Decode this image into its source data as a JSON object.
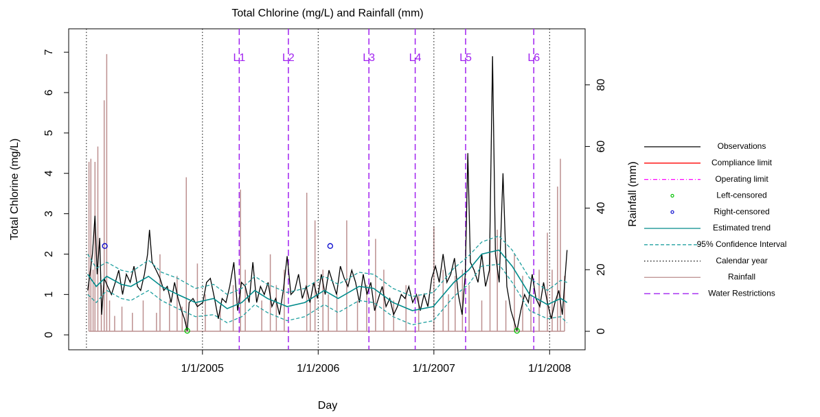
{
  "chart_data": {
    "type": "line",
    "title": "Total Chlorine (mg/L) and Rainfall (mm)",
    "xlabel": "Day",
    "ylabel": "Total Chlorine (mg/L)",
    "y2label": "Rainfall (mm)",
    "xlim": [
      "2003-11-06",
      "2008-04-22"
    ],
    "ylim": [
      -0.37,
      7.58
    ],
    "y2lim": [
      -6,
      98.2
    ],
    "xticks": [
      {
        "value": "2005-01-01",
        "label": "1/1/2005"
      },
      {
        "value": "2006-01-01",
        "label": "1/1/2006"
      },
      {
        "value": "2007-01-01",
        "label": "1/1/2007"
      },
      {
        "value": "2008-01-01",
        "label": "1/1/2008"
      }
    ],
    "yticks": [
      0,
      1,
      2,
      3,
      4,
      5,
      6,
      7
    ],
    "y2ticks": [
      0,
      20,
      40,
      60,
      80
    ],
    "observations": {
      "name": "Observations",
      "color": "#000000",
      "x": [
        "2004-01-05",
        "2004-01-12",
        "2004-01-20",
        "2004-01-28",
        "2004-02-04",
        "2004-02-12",
        "2004-02-18",
        "2004-02-26",
        "2004-03-08",
        "2004-03-20",
        "2004-04-01",
        "2004-04-12",
        "2004-04-24",
        "2004-05-06",
        "2004-05-18",
        "2004-05-30",
        "2004-06-10",
        "2004-06-20",
        "2004-07-02",
        "2004-07-12",
        "2004-07-18",
        "2004-07-26",
        "2004-08-08",
        "2004-08-20",
        "2004-09-01",
        "2004-09-12",
        "2004-09-24",
        "2004-10-05",
        "2004-10-16",
        "2004-10-27",
        "2004-11-05",
        "2004-11-14",
        "2004-11-20",
        "2004-12-02",
        "2004-12-16",
        "2005-01-02",
        "2005-01-14",
        "2005-01-26",
        "2005-02-08",
        "2005-02-20",
        "2005-03-04",
        "2005-03-16",
        "2005-03-28",
        "2005-04-10",
        "2005-04-22",
        "2005-05-04",
        "2005-05-16",
        "2005-05-28",
        "2005-06-09",
        "2005-06-21",
        "2005-07-03",
        "2005-07-15",
        "2005-07-27",
        "2005-08-08",
        "2005-08-20",
        "2005-09-01",
        "2005-09-13",
        "2005-09-25",
        "2005-10-07",
        "2005-10-19",
        "2005-10-31",
        "2005-11-12",
        "2005-11-24",
        "2005-12-06",
        "2005-12-18",
        "2005-12-30",
        "2006-01-11",
        "2006-01-23",
        "2006-02-04",
        "2006-02-16",
        "2006-02-28",
        "2006-03-12",
        "2006-03-24",
        "2006-04-05",
        "2006-04-17",
        "2006-04-29",
        "2006-05-11",
        "2006-05-23",
        "2006-06-04",
        "2006-06-16",
        "2006-06-28",
        "2006-07-10",
        "2006-07-22",
        "2006-08-03",
        "2006-08-15",
        "2006-08-27",
        "2006-09-08",
        "2006-09-20",
        "2006-10-02",
        "2006-10-14",
        "2006-10-26",
        "2006-11-07",
        "2006-11-19",
        "2006-12-01",
        "2006-12-13",
        "2006-12-25",
        "2007-01-06",
        "2007-01-18",
        "2007-01-30",
        "2007-02-11",
        "2007-02-23",
        "2007-03-07",
        "2007-03-19",
        "2007-03-31",
        "2007-04-10",
        "2007-04-18",
        "2007-04-26",
        "2007-05-08",
        "2007-05-20",
        "2007-06-01",
        "2007-06-13",
        "2007-06-25",
        "2007-07-05",
        "2007-07-14",
        "2007-07-26",
        "2007-08-07",
        "2007-08-19",
        "2007-09-01",
        "2007-09-20",
        "2007-10-02",
        "2007-10-14",
        "2007-10-26",
        "2007-11-07",
        "2007-11-19",
        "2007-12-01",
        "2007-12-13",
        "2007-12-25",
        "2008-01-06",
        "2008-01-18",
        "2008-01-30",
        "2008-02-10",
        "2008-02-25"
      ],
      "values": [
        1.1,
        1.5,
        2.0,
        2.95,
        1.5,
        2.4,
        0.5,
        1.4,
        1.2,
        1.0,
        1.3,
        1.6,
        1.0,
        1.5,
        1.3,
        1.7,
        1.2,
        1.1,
        1.5,
        2.0,
        2.6,
        1.8,
        1.6,
        1.4,
        1.1,
        1.2,
        0.8,
        1.3,
        0.9,
        0.6,
        0.4,
        0.1,
        0.8,
        0.9,
        0.7,
        0.8,
        1.3,
        1.4,
        0.9,
        0.4,
        0.9,
        0.8,
        1.2,
        1.8,
        0.6,
        1.3,
        1.2,
        0.8,
        1.8,
        0.8,
        1.2,
        1.0,
        1.3,
        0.7,
        0.9,
        0.5,
        1.1,
        1.95,
        1.0,
        1.1,
        1.5,
        0.9,
        1.2,
        0.8,
        1.3,
        0.9,
        1.5,
        1.0,
        1.6,
        1.3,
        1.0,
        1.7,
        1.4,
        1.2,
        1.6,
        1.3,
        0.8,
        1.5,
        1.0,
        1.3,
        0.6,
        0.9,
        1.2,
        0.7,
        0.9,
        0.5,
        0.7,
        1.0,
        0.9,
        1.2,
        0.8,
        1.0,
        0.6,
        1.0,
        0.7,
        1.4,
        1.7,
        1.3,
        2.0,
        1.3,
        1.5,
        1.9,
        1.0,
        0.5,
        1.5,
        4.5,
        1.8,
        1.6,
        1.3,
        2.0,
        1.2,
        1.6,
        6.9,
        2.0,
        1.3,
        4.0,
        1.2,
        0.6,
        0.1,
        0.6,
        1.0,
        0.8,
        1.5,
        0.9,
        0.7,
        1.3,
        0.8,
        0.4,
        0.8,
        1.1,
        0.5,
        2.1
      ]
    },
    "compliance_limit": {
      "name": "Compliance limit",
      "color": "#ff0000"
    },
    "operating_limit": {
      "name": "Operating limit",
      "color": "#ff00ff"
    },
    "left_censored": {
      "name": "Left-censored",
      "color": "#00c000",
      "x": [
        "2004-11-14",
        "2007-09-20"
      ],
      "values": [
        0.1,
        0.1
      ]
    },
    "right_censored": {
      "name": "Right-censored",
      "color": "#0000cc",
      "x": [
        "2004-02-28",
        "2006-02-08"
      ],
      "values": [
        2.2,
        2.2
      ]
    },
    "trend": {
      "name": "Estimated trend",
      "color": "#008b8b",
      "x": [
        "2004-01-05",
        "2004-02-01",
        "2004-03-05",
        "2004-04-20",
        "2004-05-20",
        "2004-07-15",
        "2004-08-25",
        "2004-10-15",
        "2004-12-10",
        "2005-02-05",
        "2005-03-20",
        "2005-05-05",
        "2005-06-15",
        "2005-07-25",
        "2005-09-25",
        "2005-11-20",
        "2006-01-20",
        "2006-03-05",
        "2006-05-10",
        "2006-06-25",
        "2006-08-25",
        "2006-10-25",
        "2006-12-30",
        "2007-03-05",
        "2007-04-20",
        "2007-06-01",
        "2007-07-25",
        "2007-09-05",
        "2007-10-30",
        "2007-12-25",
        "2008-02-05",
        "2008-02-25"
      ],
      "values": [
        1.5,
        1.2,
        1.45,
        1.25,
        1.2,
        1.45,
        1.2,
        1.0,
        0.8,
        0.9,
        0.65,
        0.8,
        1.1,
        0.9,
        0.7,
        0.8,
        1.1,
        0.9,
        1.2,
        1.15,
        0.8,
        0.6,
        0.7,
        1.3,
        1.6,
        2.0,
        2.1,
        1.7,
        1.0,
        0.75,
        0.9,
        0.8
      ]
    },
    "confidence_interval": {
      "name": "95% Confidence Interval",
      "color": "#20a0a0",
      "x": [
        "2004-01-05",
        "2004-02-01",
        "2004-03-05",
        "2004-04-20",
        "2004-05-20",
        "2004-07-15",
        "2004-08-25",
        "2004-10-15",
        "2004-12-10",
        "2005-02-05",
        "2005-03-20",
        "2005-05-05",
        "2005-06-15",
        "2005-07-25",
        "2005-09-25",
        "2005-11-20",
        "2006-01-20",
        "2006-03-05",
        "2006-05-10",
        "2006-06-25",
        "2006-08-25",
        "2006-10-25",
        "2006-12-30",
        "2007-03-05",
        "2007-04-20",
        "2007-06-01",
        "2007-07-25",
        "2007-09-05",
        "2007-10-30",
        "2007-12-25",
        "2008-02-05",
        "2008-02-25"
      ],
      "upper": [
        2.0,
        1.65,
        1.8,
        1.6,
        1.55,
        1.85,
        1.55,
        1.4,
        1.15,
        1.25,
        1.0,
        1.15,
        1.45,
        1.25,
        1.05,
        1.15,
        1.45,
        1.25,
        1.55,
        1.5,
        1.15,
        0.95,
        1.05,
        1.65,
        1.95,
        2.3,
        2.45,
        2.1,
        1.4,
        1.1,
        1.35,
        1.3
      ],
      "lower": [
        1.0,
        0.8,
        1.1,
        0.9,
        0.85,
        1.1,
        0.85,
        0.65,
        0.45,
        0.5,
        0.3,
        0.45,
        0.75,
        0.55,
        0.35,
        0.45,
        0.75,
        0.55,
        0.85,
        0.8,
        0.45,
        0.25,
        0.35,
        0.95,
        1.25,
        1.7,
        1.75,
        1.3,
        0.6,
        0.4,
        0.45,
        0.3
      ]
    },
    "calendar_year": {
      "name": "Calendar year",
      "color": "#000000",
      "x": [
        "2004-01-01",
        "2005-01-01",
        "2006-01-01",
        "2007-01-01",
        "2008-01-01"
      ]
    },
    "rainfall": {
      "name": "Rainfall",
      "color": "#bc8f8f",
      "axis": "y2",
      "x": [
        "2004-01-09",
        "2004-01-15",
        "2004-01-22",
        "2004-01-28",
        "2004-02-06",
        "2004-02-17",
        "2004-02-26",
        "2004-03-05",
        "2004-03-14",
        "2004-03-30",
        "2004-04-22",
        "2004-05-25",
        "2004-06-28",
        "2004-08-09",
        "2004-08-20",
        "2004-09-19",
        "2004-10-13",
        "2004-10-29",
        "2004-11-11",
        "2004-12-16",
        "2005-01-10",
        "2005-02-26",
        "2005-04-08",
        "2005-05-01",
        "2005-05-16",
        "2005-07-07",
        "2005-08-03",
        "2005-08-22",
        "2005-09-16",
        "2005-11-26",
        "2005-12-07",
        "2005-12-22",
        "2006-01-16",
        "2006-02-02",
        "2006-03-01",
        "2006-04-01",
        "2006-05-05",
        "2006-06-03",
        "2006-07-01",
        "2006-07-27",
        "2006-08-27",
        "2006-10-05",
        "2006-11-14",
        "2007-01-01",
        "2007-01-30",
        "2007-02-16",
        "2007-03-09",
        "2007-04-01",
        "2007-04-22",
        "2007-06-01",
        "2007-06-27",
        "2007-07-20",
        "2007-08-16",
        "2007-09-12",
        "2007-10-08",
        "2007-11-03",
        "2007-11-29",
        "2007-12-25",
        "2008-01-09",
        "2008-01-26",
        "2008-02-04",
        "2008-02-17"
      ],
      "values": [
        55,
        56,
        20,
        55,
        60,
        15,
        75,
        90,
        10,
        5,
        8,
        6,
        10,
        6,
        25,
        10,
        18,
        8,
        50,
        22,
        12,
        8,
        15,
        46,
        20,
        10,
        25,
        15,
        20,
        45,
        10,
        36,
        20,
        12,
        12,
        36,
        10,
        15,
        30,
        20,
        10,
        15,
        12,
        34,
        20,
        12,
        18,
        20,
        15,
        10,
        30,
        33,
        10,
        25,
        18,
        12,
        20,
        32,
        20,
        47,
        56,
        18
      ]
    },
    "water_restrictions": {
      "name": "Water Restrictions",
      "color": "#a020f0",
      "x": [
        "2005-04-27",
        "2005-09-29",
        "2006-06-10",
        "2006-11-03",
        "2007-04-11",
        "2007-11-12"
      ],
      "labels": [
        "L1",
        "L2",
        "L3",
        "L4",
        "L5",
        "L6"
      ]
    }
  }
}
